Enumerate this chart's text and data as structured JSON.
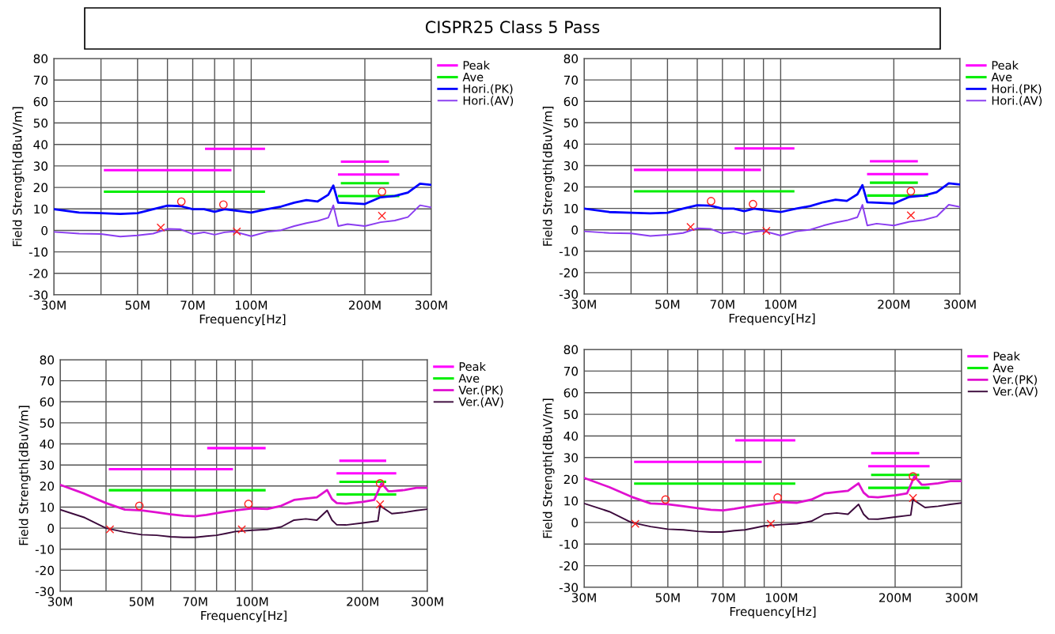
{
  "chart_data": [
    {
      "type": "line",
      "title": "CISPR25 Class 5 Pass",
      "xlabel": "Frequency[Hz]",
      "ylabel": "Field Strength[dBuV/m]",
      "log": "x",
      "grid": true,
      "legend": "right",
      "xlim": [
        30,
        300
      ],
      "ylim": [
        -30,
        80
      ],
      "xticks": [
        {
          "value": 30,
          "label": "30M"
        },
        {
          "value": 40,
          "label": null
        },
        {
          "value": 50,
          "label": "50M"
        },
        {
          "value": 60,
          "label": null
        },
        {
          "value": 70,
          "label": "70M"
        },
        {
          "value": 80,
          "label": null
        },
        {
          "value": 90,
          "label": null
        },
        {
          "value": 100,
          "label": "100M"
        },
        {
          "value": 200,
          "label": "200M"
        },
        {
          "value": 300,
          "label": "300M"
        }
      ],
      "yticks": [
        -30,
        -20,
        -10,
        0,
        10,
        20,
        30,
        40,
        50,
        60,
        70,
        80
      ],
      "series": [
        {
          "name": "Peak",
          "color": "#ff00ff",
          "x": [
            41,
            88
          ],
          "values": [
            28,
            28
          ]
        },
        {
          "color": "#ff00ff",
          "x": [
            76,
            108
          ],
          "values": [
            38,
            38
          ]
        },
        {
          "color": "#ff00ff",
          "x": [
            171,
            245
          ],
          "values": [
            26,
            26
          ]
        },
        {
          "color": "#ff00ff",
          "x": [
            174,
            230
          ],
          "values": [
            32,
            32
          ]
        },
        {
          "name": "Ave",
          "color": "#00ee00",
          "x": [
            41,
            108
          ],
          "values": [
            18,
            18
          ]
        },
        {
          "color": "#00ee00",
          "x": [
            171,
            245
          ],
          "values": [
            16,
            16
          ]
        },
        {
          "color": "#00ee00",
          "x": [
            174,
            230
          ],
          "values": [
            22,
            22
          ]
        },
        {
          "name": "Hori.(PK)",
          "color": "#0000ff",
          "x": [
            30,
            35,
            40,
            45,
            50,
            55,
            60,
            65,
            70,
            75,
            80,
            85,
            90,
            100,
            110,
            120,
            130,
            140,
            150,
            160,
            165,
            170,
            180,
            200,
            220,
            240,
            260,
            280,
            300
          ],
          "values": [
            9.9,
            8.3,
            8.0,
            7.7,
            8.0,
            9.9,
            11.5,
            11.3,
            9.9,
            9.9,
            8.7,
            9.9,
            9.3,
            8.3,
            9.9,
            11.1,
            12.9,
            14.1,
            13.5,
            16.6,
            20.9,
            12.9,
            12.7,
            12.3,
            15.4,
            16.0,
            17.6,
            21.7,
            21.2
          ]
        },
        {
          "name": "Hori.(AV)",
          "color": "#8a3cf0",
          "x": [
            30,
            35,
            40,
            45,
            50,
            55,
            60,
            65,
            70,
            75,
            80,
            85,
            90,
            100,
            110,
            120,
            130,
            140,
            150,
            160,
            165,
            170,
            180,
            200,
            220,
            240,
            260,
            280,
            300
          ],
          "values": [
            -0.7,
            -1.5,
            -1.7,
            -2.9,
            -2.3,
            -1.5,
            0.7,
            0.5,
            -1.7,
            -0.9,
            -2.0,
            -0.9,
            -0.5,
            -2.7,
            -0.7,
            0.1,
            2.0,
            3.4,
            4.4,
            5.9,
            11.7,
            2.0,
            2.9,
            2.0,
            3.8,
            4.6,
            6.2,
            11.7,
            10.7
          ]
        },
        {
          "type": "scatter",
          "marker": "circle",
          "color": "#ff2020",
          "x": [
            65.3,
            84.4,
            222
          ],
          "values": [
            13.4,
            12,
            18
          ]
        },
        {
          "type": "scatter",
          "marker": "cross",
          "color": "#ff2020",
          "x": [
            57.6,
            91.6,
            222
          ],
          "values": [
            1.3,
            -0.5,
            6.8
          ]
        }
      ]
    },
    {
      "type": "line",
      "xlabel": "Frequency[Hz]",
      "ylabel": "Field Strength[dBuV/m]",
      "log": "x",
      "grid": true,
      "legend": "right",
      "xlim": [
        30,
        300
      ],
      "ylim": [
        -30,
        80
      ],
      "xticks": [
        {
          "value": 30,
          "label": "30M"
        },
        {
          "value": 40,
          "label": null
        },
        {
          "value": 50,
          "label": "50M"
        },
        {
          "value": 60,
          "label": null
        },
        {
          "value": 70,
          "label": "70M"
        },
        {
          "value": 80,
          "label": null
        },
        {
          "value": 90,
          "label": null
        },
        {
          "value": 100,
          "label": "100M"
        },
        {
          "value": 200,
          "label": "200M"
        },
        {
          "value": 300,
          "label": "300M"
        }
      ],
      "yticks": [
        -30,
        -20,
        -10,
        0,
        10,
        20,
        30,
        40,
        50,
        60,
        70,
        80
      ],
      "series": [
        {
          "name": "Peak",
          "color": "#ff00ff",
          "x": [
            41,
            88
          ],
          "values": [
            28,
            28
          ]
        },
        {
          "color": "#ff00ff",
          "x": [
            76,
            108
          ],
          "values": [
            38,
            38
          ]
        },
        {
          "color": "#ff00ff",
          "x": [
            171,
            245
          ],
          "values": [
            26,
            26
          ]
        },
        {
          "color": "#ff00ff",
          "x": [
            174,
            230
          ],
          "values": [
            32,
            32
          ]
        },
        {
          "name": "Ave",
          "color": "#00ee00",
          "x": [
            41,
            108
          ],
          "values": [
            18,
            18
          ]
        },
        {
          "color": "#00ee00",
          "x": [
            171,
            245
          ],
          "values": [
            16,
            16
          ]
        },
        {
          "color": "#00ee00",
          "x": [
            174,
            230
          ],
          "values": [
            22,
            22
          ]
        },
        {
          "name": "Hori.(PK)",
          "color": "#0000ff",
          "x": [
            30,
            35,
            40,
            45,
            50,
            55,
            60,
            65,
            70,
            75,
            80,
            85,
            90,
            100,
            110,
            120,
            130,
            140,
            150,
            160,
            165,
            170,
            180,
            200,
            220,
            240,
            260,
            280,
            300
          ],
          "values": [
            9.9,
            8.3,
            8.0,
            7.7,
            8.0,
            9.9,
            11.5,
            11.3,
            9.9,
            9.9,
            8.7,
            9.9,
            9.3,
            8.3,
            9.9,
            11.1,
            12.9,
            14.1,
            13.5,
            16.6,
            20.9,
            12.9,
            12.7,
            12.3,
            15.4,
            16.0,
            17.6,
            21.7,
            21.2
          ]
        },
        {
          "name": "Hori.(AV)",
          "color": "#8a3cf0",
          "x": [
            30,
            35,
            40,
            45,
            50,
            55,
            60,
            65,
            70,
            75,
            80,
            85,
            90,
            100,
            110,
            120,
            130,
            140,
            150,
            160,
            165,
            170,
            180,
            200,
            220,
            240,
            260,
            280,
            300
          ],
          "values": [
            -0.7,
            -1.5,
            -1.7,
            -2.9,
            -2.3,
            -1.5,
            0.7,
            0.5,
            -1.7,
            -0.9,
            -2.0,
            -0.9,
            -0.5,
            -2.7,
            -0.7,
            0.1,
            2.0,
            3.4,
            4.4,
            5.9,
            11.7,
            2.0,
            2.9,
            2.0,
            3.8,
            4.6,
            6.2,
            11.7,
            10.7
          ]
        },
        {
          "type": "scatter",
          "marker": "circle",
          "color": "#ff2020",
          "x": [
            65.3,
            84.4,
            222
          ],
          "values": [
            13.4,
            12,
            18
          ]
        },
        {
          "type": "scatter",
          "marker": "cross",
          "color": "#ff2020",
          "x": [
            57.6,
            91.6,
            222
          ],
          "values": [
            1.3,
            -0.5,
            6.8
          ]
        }
      ]
    },
    {
      "type": "line",
      "xlabel": "Frequency[Hz]",
      "ylabel": "Field Strength[dBuV/m]",
      "log": "x",
      "grid": true,
      "legend": "right",
      "xlim": [
        30,
        300
      ],
      "ylim": [
        -30,
        80
      ],
      "xticks": [
        {
          "value": 30,
          "label": "30M"
        },
        {
          "value": 40,
          "label": null
        },
        {
          "value": 50,
          "label": "50M"
        },
        {
          "value": 60,
          "label": null
        },
        {
          "value": 70,
          "label": "70M"
        },
        {
          "value": 80,
          "label": null
        },
        {
          "value": 90,
          "label": null
        },
        {
          "value": 100,
          "label": "100M"
        },
        {
          "value": 200,
          "label": "200M"
        },
        {
          "value": 300,
          "label": "300M"
        }
      ],
      "yticks": [
        -30,
        -20,
        -10,
        0,
        10,
        20,
        30,
        40,
        50,
        60,
        70,
        80
      ],
      "series": [
        {
          "name": "Peak",
          "color": "#ff00ff",
          "x": [
            41,
            88
          ],
          "values": [
            28,
            28
          ]
        },
        {
          "color": "#ff00ff",
          "x": [
            76,
            108
          ],
          "values": [
            38,
            38
          ]
        },
        {
          "color": "#ff00ff",
          "x": [
            171,
            245
          ],
          "values": [
            26,
            26
          ]
        },
        {
          "color": "#ff00ff",
          "x": [
            174,
            230
          ],
          "values": [
            32,
            32
          ]
        },
        {
          "name": "Ave",
          "color": "#00ee00",
          "x": [
            41,
            108
          ],
          "values": [
            18,
            18
          ]
        },
        {
          "color": "#00ee00",
          "x": [
            171,
            245
          ],
          "values": [
            16,
            16
          ]
        },
        {
          "color": "#00ee00",
          "x": [
            174,
            230
          ],
          "values": [
            22,
            22
          ]
        },
        {
          "name": "Ver.(PK)",
          "color": "#e010d0",
          "x": [
            30,
            35,
            40,
            45,
            50,
            55,
            60,
            65,
            70,
            75,
            80,
            85,
            90,
            100,
            110,
            120,
            130,
            140,
            150,
            160,
            165,
            170,
            180,
            200,
            215,
            225,
            235,
            240,
            260,
            280,
            300
          ],
          "values": [
            20.6,
            16.3,
            11.9,
            8.8,
            8.4,
            7.5,
            6.6,
            5.9,
            5.6,
            6.3,
            7.1,
            7.9,
            8.4,
            9.4,
            9.1,
            10.6,
            13.4,
            14.1,
            14.6,
            18.1,
            13.8,
            11.9,
            11.6,
            12.5,
            13.4,
            21.3,
            17.5,
            17.5,
            18.1,
            19.1,
            19.1
          ]
        },
        {
          "name": "Ver.(AV)",
          "color": "#3c0a3c",
          "x": [
            30,
            35,
            40,
            45,
            50,
            55,
            60,
            65,
            70,
            75,
            80,
            85,
            90,
            100,
            110,
            120,
            130,
            140,
            150,
            160,
            165,
            170,
            180,
            200,
            220,
            223,
            240,
            260,
            280,
            300
          ],
          "values": [
            8.8,
            5.0,
            0,
            -1.9,
            -3.1,
            -3.4,
            -4.1,
            -4.4,
            -4.4,
            -3.8,
            -3.4,
            -2.5,
            -1.6,
            -1.0,
            -0.6,
            0.6,
            3.8,
            4.4,
            3.8,
            8.4,
            3.8,
            1.6,
            1.5,
            2.5,
            3.4,
            10.6,
            6.9,
            7.5,
            8.4,
            9.0
          ]
        },
        {
          "type": "scatter",
          "marker": "circle",
          "color": "#ff2020",
          "x": [
            49.3,
            97.7,
            223
          ],
          "values": [
            10.6,
            11.5,
            21.3
          ]
        },
        {
          "type": "scatter",
          "marker": "cross",
          "color": "#ff2020",
          "x": [
            41,
            93.7,
            223
          ],
          "values": [
            -0.6,
            -0.6,
            11.3
          ]
        }
      ]
    },
    {
      "type": "line",
      "xlabel": "Frequency[Hz]",
      "ylabel": "Field Strength[dBuV/m]",
      "log": "x",
      "grid": true,
      "legend": "right",
      "xlim": [
        30,
        300
      ],
      "ylim": [
        -30,
        80
      ],
      "xticks": [
        {
          "value": 30,
          "label": "30M"
        },
        {
          "value": 40,
          "label": null
        },
        {
          "value": 50,
          "label": "50M"
        },
        {
          "value": 60,
          "label": null
        },
        {
          "value": 70,
          "label": "70M"
        },
        {
          "value": 80,
          "label": null
        },
        {
          "value": 90,
          "label": null
        },
        {
          "value": 100,
          "label": "100M"
        },
        {
          "value": 200,
          "label": "200M"
        },
        {
          "value": 300,
          "label": "300M"
        }
      ],
      "yticks": [
        -30,
        -20,
        -10,
        0,
        10,
        20,
        30,
        40,
        50,
        60,
        70,
        80
      ],
      "series": [
        {
          "name": "Peak",
          "color": "#ff00ff",
          "x": [
            41,
            88
          ],
          "values": [
            28,
            28
          ]
        },
        {
          "color": "#ff00ff",
          "x": [
            76,
            108
          ],
          "values": [
            38,
            38
          ]
        },
        {
          "color": "#ff00ff",
          "x": [
            171,
            245
          ],
          "values": [
            26,
            26
          ]
        },
        {
          "color": "#ff00ff",
          "x": [
            174,
            230
          ],
          "values": [
            32,
            32
          ]
        },
        {
          "name": "Ave",
          "color": "#00ee00",
          "x": [
            41,
            108
          ],
          "values": [
            18,
            18
          ]
        },
        {
          "color": "#00ee00",
          "x": [
            171,
            245
          ],
          "values": [
            16,
            16
          ]
        },
        {
          "color": "#00ee00",
          "x": [
            174,
            230
          ],
          "values": [
            22,
            22
          ]
        },
        {
          "name": "Ver.(PK)",
          "color": "#e010d0",
          "x": [
            30,
            35,
            40,
            45,
            50,
            55,
            60,
            65,
            70,
            75,
            80,
            85,
            90,
            100,
            110,
            120,
            130,
            140,
            150,
            160,
            165,
            170,
            180,
            200,
            215,
            225,
            235,
            240,
            260,
            280,
            300
          ],
          "values": [
            20.6,
            16.3,
            11.9,
            8.8,
            8.4,
            7.5,
            6.6,
            5.9,
            5.6,
            6.3,
            7.1,
            7.9,
            8.4,
            9.4,
            9.1,
            10.6,
            13.4,
            14.1,
            14.6,
            18.1,
            13.8,
            11.9,
            11.6,
            12.5,
            13.4,
            21.3,
            17.5,
            17.5,
            18.1,
            19.1,
            19.1
          ]
        },
        {
          "name": "Ver.(AV)",
          "color": "#3c0a3c",
          "x": [
            30,
            35,
            40,
            45,
            50,
            55,
            60,
            65,
            70,
            75,
            80,
            85,
            90,
            100,
            110,
            120,
            130,
            140,
            150,
            160,
            165,
            170,
            180,
            200,
            220,
            223,
            240,
            260,
            280,
            300
          ],
          "values": [
            8.8,
            5.0,
            0,
            -1.9,
            -3.1,
            -3.4,
            -4.1,
            -4.4,
            -4.4,
            -3.8,
            -3.4,
            -2.5,
            -1.6,
            -1.0,
            -0.6,
            0.6,
            3.8,
            4.4,
            3.8,
            8.4,
            3.8,
            1.6,
            1.5,
            2.5,
            3.4,
            10.6,
            6.9,
            7.5,
            8.4,
            9.0
          ]
        },
        {
          "type": "scatter",
          "marker": "circle",
          "color": "#ff2020",
          "x": [
            49.3,
            97.7,
            223
          ],
          "values": [
            10.6,
            11.5,
            21.3
          ]
        },
        {
          "type": "scatter",
          "marker": "cross",
          "color": "#ff2020",
          "x": [
            41,
            93.7,
            223
          ],
          "values": [
            -0.6,
            -0.6,
            11.3
          ]
        }
      ]
    }
  ]
}
